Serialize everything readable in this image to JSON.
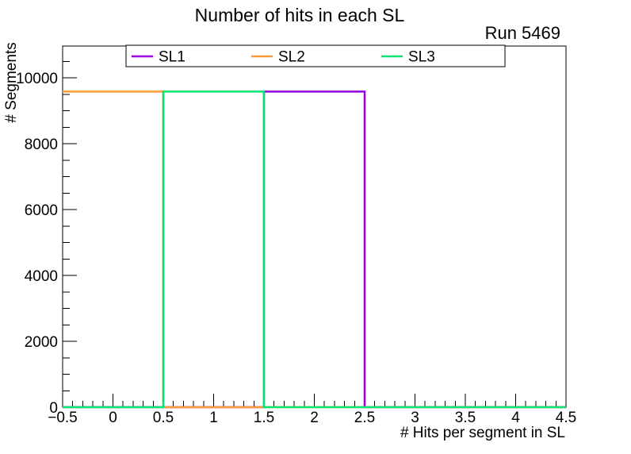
{
  "chart_data": {
    "type": "bar",
    "style": "step-histogram",
    "title": "Number of hits in each SL",
    "annotation": "Run 5469",
    "xlabel": "# Hits per segment in SL",
    "ylabel": "# Segments",
    "xlim": [
      -0.5,
      4.5
    ],
    "ylim": [
      0,
      10964
    ],
    "grid": false,
    "x_major_ticks": [
      -0.5,
      0,
      0.5,
      1,
      1.5,
      2,
      2.5,
      3,
      3.5,
      4,
      4.5
    ],
    "x_tick_labels": [
      "−0.5",
      "0",
      "0.5",
      "1",
      "1.5",
      "2",
      "2.5",
      "3",
      "3.5",
      "4",
      "4.5"
    ],
    "x_minor_tick_step": 0.1,
    "y_major_ticks": [
      0,
      2000,
      4000,
      6000,
      8000,
      10000
    ],
    "y_tick_labels": [
      "0",
      "2000",
      "4000",
      "6000",
      "8000",
      "10000"
    ],
    "y_minor_tick_step": 500,
    "series": [
      {
        "name": "SL1",
        "color": "#9900e6",
        "bins": [
          {
            "x_low": 1.5,
            "x_high": 2.5,
            "count": 9580
          }
        ]
      },
      {
        "name": "SL2",
        "color": "#ff9933",
        "bins": [
          {
            "x_low": -0.5,
            "x_high": 0.5,
            "count": 9580
          }
        ]
      },
      {
        "name": "SL3",
        "color": "#00e673",
        "bins": [
          {
            "x_low": 0.5,
            "x_high": 1.5,
            "count": 9580
          }
        ]
      }
    ],
    "legend": {
      "position": "top-inside",
      "entries": [
        {
          "label": "SL1",
          "color": "#9900e6"
        },
        {
          "label": "SL2",
          "color": "#ff9933"
        },
        {
          "label": "SL3",
          "color": "#00e673"
        }
      ]
    },
    "colors": {
      "axis": "#000000",
      "text": "#000000",
      "background": "#ffffff"
    }
  }
}
